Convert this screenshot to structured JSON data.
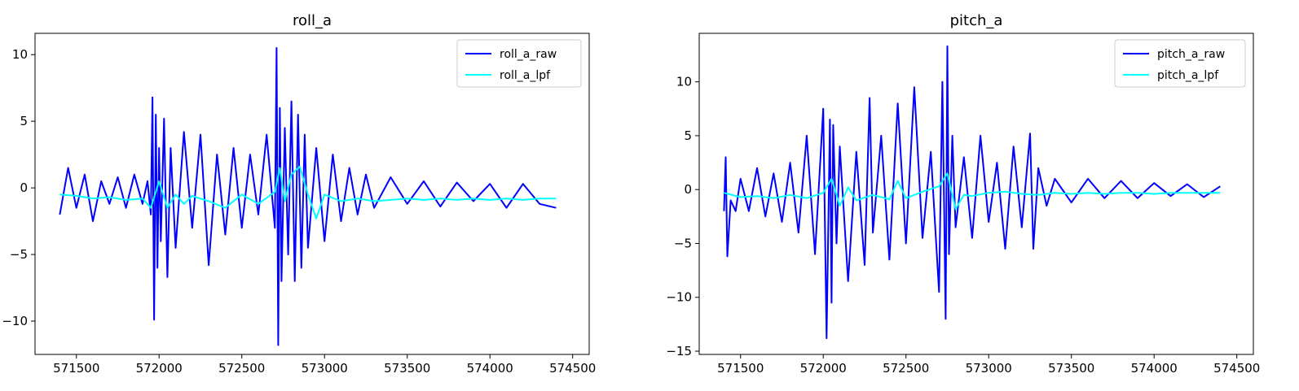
{
  "chart_data": [
    {
      "type": "line",
      "title": "roll_a",
      "xlabel": "",
      "ylabel": "",
      "xlim": [
        571250,
        574600
      ],
      "ylim": [
        -12.5,
        11.6
      ],
      "xticks": [
        571500,
        572000,
        572500,
        573000,
        573500,
        574000,
        574500
      ],
      "yticks": [
        -10,
        -5,
        0,
        5,
        10
      ],
      "legend_position": "top-right",
      "series": [
        {
          "name": "roll_a_raw",
          "color": "#0000ff",
          "x": [
            571400,
            571450,
            571500,
            571550,
            571600,
            571650,
            571700,
            571750,
            571800,
            571850,
            571900,
            571930,
            571950,
            571960,
            571970,
            571980,
            571990,
            572000,
            572010,
            572030,
            572050,
            572070,
            572100,
            572150,
            572200,
            572250,
            572300,
            572350,
            572400,
            572450,
            572500,
            572550,
            572600,
            572650,
            572700,
            572710,
            572720,
            572730,
            572740,
            572760,
            572780,
            572800,
            572820,
            572840,
            572860,
            572880,
            572900,
            572950,
            573000,
            573050,
            573100,
            573150,
            573200,
            573250,
            573300,
            573400,
            573500,
            573600,
            573700,
            573800,
            573900,
            574000,
            574100,
            574200,
            574300,
            574400
          ],
          "y": [
            -2.0,
            1.5,
            -1.5,
            1.0,
            -2.5,
            0.5,
            -1.2,
            0.8,
            -1.5,
            1.0,
            -1.2,
            0.5,
            -2.0,
            6.8,
            -9.9,
            5.5,
            -6.0,
            3.0,
            -4.0,
            5.2,
            -6.7,
            3.0,
            -4.5,
            4.2,
            -3.0,
            4.0,
            -5.8,
            2.5,
            -3.5,
            3.0,
            -3.0,
            2.5,
            -2.0,
            4.0,
            -3.0,
            10.5,
            -11.8,
            6.0,
            -7.0,
            4.5,
            -5.0,
            6.5,
            -7.0,
            5.5,
            -6.0,
            4.0,
            -4.5,
            3.0,
            -4.0,
            2.5,
            -2.5,
            1.5,
            -2.0,
            1.0,
            -1.5,
            0.8,
            -1.2,
            0.5,
            -1.4,
            0.4,
            -1.0,
            0.3,
            -1.5,
            0.3,
            -1.2,
            -1.5
          ]
        },
        {
          "name": "roll_a_lpf",
          "color": "#00ffff",
          "x": [
            571400,
            571500,
            571600,
            571700,
            571800,
            571900,
            571950,
            572000,
            572050,
            572100,
            572150,
            572200,
            572300,
            572400,
            572500,
            572600,
            572700,
            572730,
            572760,
            572800,
            572850,
            572900,
            572950,
            573000,
            573100,
            573200,
            573300,
            573400,
            573500,
            573600,
            573700,
            573800,
            573900,
            574000,
            574100,
            574200,
            574300,
            574400
          ],
          "y": [
            -0.5,
            -0.6,
            -0.8,
            -0.7,
            -0.9,
            -0.8,
            -1.5,
            0.5,
            -1.5,
            -0.5,
            -1.2,
            -0.6,
            -1.0,
            -1.5,
            -0.5,
            -1.2,
            -0.3,
            1.5,
            -1.0,
            1.0,
            1.6,
            -0.5,
            -2.3,
            -0.5,
            -1.0,
            -0.8,
            -1.0,
            -0.9,
            -0.8,
            -0.9,
            -0.8,
            -0.9,
            -0.8,
            -0.9,
            -0.8,
            -0.9,
            -0.8,
            -0.8
          ]
        }
      ]
    },
    {
      "type": "line",
      "title": "pitch_a",
      "xlabel": "",
      "ylabel": "",
      "xlim": [
        571250,
        574600
      ],
      "ylim": [
        -15.3,
        14.5
      ],
      "xticks": [
        571500,
        572000,
        572500,
        573000,
        573500,
        574000,
        574500
      ],
      "yticks": [
        -15,
        -10,
        -5,
        0,
        5,
        10
      ],
      "legend_position": "top-right",
      "series": [
        {
          "name": "pitch_a_raw",
          "color": "#0000ff",
          "x": [
            571400,
            571410,
            571420,
            571440,
            571470,
            571500,
            571550,
            571600,
            571650,
            571700,
            571750,
            571800,
            571850,
            571900,
            571950,
            572000,
            572020,
            572040,
            572050,
            572060,
            572080,
            572100,
            572150,
            572200,
            572250,
            572280,
            572300,
            572350,
            572400,
            572450,
            572500,
            572550,
            572600,
            572650,
            572700,
            572720,
            572740,
            572750,
            572760,
            572780,
            572800,
            572850,
            572900,
            572950,
            573000,
            573050,
            573100,
            573150,
            573200,
            573250,
            573270,
            573300,
            573350,
            573400,
            573500,
            573600,
            573700,
            573800,
            573900,
            574000,
            574100,
            574200,
            574300,
            574400
          ],
          "y": [
            -2.0,
            3.0,
            -6.2,
            -1.0,
            -2.0,
            1.0,
            -2.0,
            2.0,
            -2.5,
            1.5,
            -3.0,
            2.5,
            -4.0,
            5.0,
            -6.0,
            7.5,
            -13.8,
            6.5,
            -10.5,
            6.0,
            -5.0,
            4.0,
            -8.5,
            3.5,
            -7.0,
            8.5,
            -4.0,
            5.0,
            -6.5,
            8.0,
            -5.0,
            9.5,
            -4.5,
            3.5,
            -9.5,
            10.0,
            -12.0,
            13.3,
            -6.0,
            5.0,
            -3.5,
            3.0,
            -4.5,
            5.0,
            -3.0,
            2.5,
            -5.5,
            4.0,
            -3.5,
            5.2,
            -5.5,
            2.0,
            -1.5,
            1.0,
            -1.2,
            1.0,
            -0.8,
            0.8,
            -0.8,
            0.6,
            -0.6,
            0.5,
            -0.7,
            0.3
          ]
        },
        {
          "name": "pitch_a_lpf",
          "color": "#00ffff",
          "x": [
            571400,
            571500,
            571600,
            571700,
            571800,
            571900,
            572000,
            572050,
            572100,
            572150,
            572200,
            572300,
            572400,
            572450,
            572500,
            572600,
            572700,
            572750,
            572800,
            572850,
            572900,
            573000,
            573100,
            573200,
            573300,
            573400,
            573500,
            573600,
            573700,
            573800,
            573900,
            574000,
            574100,
            574200,
            574300,
            574400
          ],
          "y": [
            -0.3,
            -0.7,
            -0.6,
            -0.8,
            -0.5,
            -0.8,
            -0.3,
            1.0,
            -1.5,
            0.2,
            -1.0,
            -0.5,
            -0.9,
            0.8,
            -0.8,
            -0.2,
            0.3,
            1.5,
            -1.8,
            -0.5,
            -0.6,
            -0.3,
            -0.2,
            -0.4,
            -0.5,
            -0.3,
            -0.4,
            -0.3,
            -0.4,
            -0.3,
            -0.3,
            -0.4,
            -0.3,
            -0.3,
            -0.3,
            -0.3
          ]
        }
      ]
    }
  ]
}
